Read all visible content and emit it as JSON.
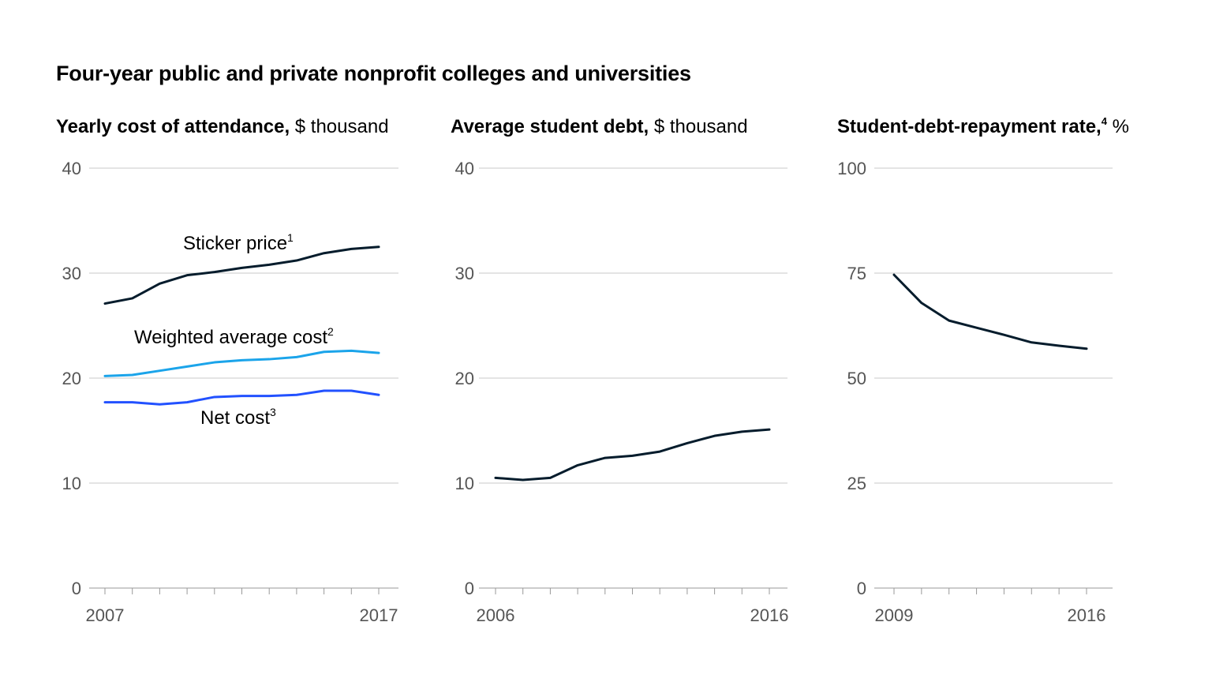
{
  "title": "Four-year public and private nonprofit colleges and universities",
  "colors": {
    "dark": "#051c2c",
    "light_blue": "#1ba4ea",
    "blue": "#2251ff",
    "grid": "#c8c8c8",
    "tick_text": "#555555"
  },
  "chart_data": [
    {
      "type": "line",
      "title_bold": "Yearly cost of attendance,",
      "title_rest": " $ thousand",
      "title_sup": "",
      "x": [
        2007,
        2008,
        2009,
        2010,
        2011,
        2012,
        2013,
        2014,
        2015,
        2016,
        2017
      ],
      "x_tick_labels": [
        "2007",
        "2017"
      ],
      "ylim": [
        0,
        40
      ],
      "y_ticks": [
        "0",
        "10",
        "20",
        "30",
        "40"
      ],
      "grid": true,
      "series": [
        {
          "name": "Sticker price",
          "sup": "1",
          "color": "#051c2c",
          "values": [
            27.1,
            27.6,
            29.0,
            29.8,
            30.1,
            30.5,
            30.8,
            31.2,
            31.9,
            32.3,
            32.5
          ]
        },
        {
          "name": "Weighted average cost",
          "sup": "2",
          "color": "#1ba4ea",
          "values": [
            20.2,
            20.3,
            20.7,
            21.1,
            21.5,
            21.7,
            21.8,
            22.0,
            22.5,
            22.6,
            22.4
          ]
        },
        {
          "name": "Net cost",
          "sup": "3",
          "color": "#2251ff",
          "values": [
            17.7,
            17.7,
            17.5,
            17.7,
            18.2,
            18.3,
            18.3,
            18.4,
            18.8,
            18.8,
            18.4
          ]
        }
      ]
    },
    {
      "type": "line",
      "title_bold": "Average student debt,",
      "title_rest": " $ thousand",
      "title_sup": "",
      "x": [
        2006,
        2007,
        2008,
        2009,
        2010,
        2011,
        2012,
        2013,
        2014,
        2015,
        2016
      ],
      "x_tick_labels": [
        "2006",
        "2016"
      ],
      "ylim": [
        0,
        40
      ],
      "y_ticks": [
        "0",
        "10",
        "20",
        "30",
        "40"
      ],
      "grid": true,
      "series": [
        {
          "color": "#051c2c",
          "values": [
            10.5,
            10.3,
            10.5,
            11.7,
            12.4,
            12.6,
            13.0,
            13.8,
            14.5,
            14.9,
            15.1
          ]
        }
      ]
    },
    {
      "type": "line",
      "title_bold": "Student-debt-repayment rate,",
      "title_rest": " %",
      "title_sup": "4",
      "x": [
        2009,
        2010,
        2011,
        2012,
        2013,
        2014,
        2015,
        2016
      ],
      "x_tick_labels": [
        "2009",
        "2016"
      ],
      "ylim": [
        0,
        100
      ],
      "y_ticks": [
        "0",
        "25",
        "50",
        "75",
        "100"
      ],
      "grid": true,
      "series": [
        {
          "color": "#051c2c",
          "values": [
            74.6,
            67.9,
            63.7,
            62.0,
            60.3,
            58.5,
            57.7,
            57.0
          ]
        }
      ]
    }
  ]
}
